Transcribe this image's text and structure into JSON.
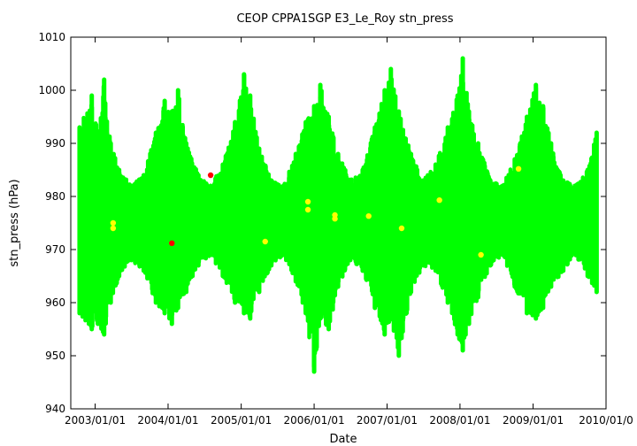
{
  "chart_data": {
    "type": "scatter",
    "title": "CEOP CPPA1SGP E3_Le_Roy  stn_press",
    "xlabel": "Date",
    "ylabel": "stn_press (hPa)",
    "ylim": [
      940,
      1010
    ],
    "xlim": [
      "2002-09-01",
      "2010-01-01"
    ],
    "y_ticks": [
      "940",
      "950",
      "960",
      "970",
      "980",
      "990",
      "1000",
      "1010"
    ],
    "x_ticks": [
      {
        "date": "2003-01-01",
        "label": "2003/01/01"
      },
      {
        "date": "2004-01-01",
        "label": "2004/01/01"
      },
      {
        "date": "2005-01-01",
        "label": "2005/01/01"
      },
      {
        "date": "2006-01-01",
        "label": "2006/01/01"
      },
      {
        "date": "2007-01-01",
        "label": "2007/01/01"
      },
      {
        "date": "2008-01-01",
        "label": "2008/01/01"
      },
      {
        "date": "2009-01-01",
        "label": "2009/01/01"
      },
      {
        "date": "2010-01-01",
        "label": "2010/01/0"
      }
    ],
    "grid": false,
    "series": [
      {
        "color": "#00ff00",
        "x": [
          "2002-10-15",
          "2002-12-15",
          "2003-01-15",
          "2003-02-15",
          "2003-03-20",
          "2003-05-01",
          "2003-07-01",
          "2003-09-01",
          "2003-11-01",
          "2003-12-15",
          "2004-01-20",
          "2004-02-20",
          "2004-04-01",
          "2004-06-01",
          "2004-08-01",
          "2004-10-01",
          "2004-12-01",
          "2005-01-15",
          "2005-02-15",
          "2005-04-01",
          "2005-06-01",
          "2005-08-01",
          "2005-10-01",
          "2005-11-20",
          "2006-01-01",
          "2006-02-01",
          "2006-03-15",
          "2006-05-01",
          "2006-07-01",
          "2006-09-01",
          "2006-11-01",
          "2006-12-20",
          "2007-01-20",
          "2007-03-01",
          "2007-05-01",
          "2007-07-01",
          "2007-09-01",
          "2007-11-01",
          "2007-12-20",
          "2008-01-15",
          "2008-02-15",
          "2008-04-01",
          "2008-06-01",
          "2008-08-01",
          "2008-10-01",
          "2008-12-01",
          "2009-01-15",
          "2009-02-20",
          "2009-04-01",
          "2009-06-01",
          "2009-08-01",
          "2009-10-01",
          "2009-11-15"
        ],
        "y_min": [
          958,
          955,
          956,
          954,
          960,
          965,
          968,
          966,
          960,
          958,
          956,
          959,
          962,
          967,
          969,
          965,
          960,
          958,
          957,
          962,
          967,
          969,
          964,
          958,
          947,
          957,
          955,
          963,
          968,
          966,
          959,
          954,
          957,
          950,
          962,
          967,
          966,
          960,
          954,
          951,
          956,
          961,
          967,
          969,
          963,
          958,
          957,
          959,
          963,
          966,
          969,
          965,
          962
        ],
        "y_max": [
          993,
          999,
          992,
          1002,
          990,
          985,
          982,
          984,
          992,
          998,
          996,
          1000,
          990,
          984,
          982,
          986,
          994,
          1003,
          999,
          989,
          983,
          982,
          988,
          994,
          997,
          1001,
          995,
          988,
          983,
          985,
          993,
          1000,
          1004,
          996,
          988,
          983,
          986,
          993,
          999,
          1006,
          996,
          990,
          983,
          982,
          987,
          995,
          1001,
          997,
          990,
          983,
          982,
          985,
          992
        ]
      },
      {
        "color": "#ffff00",
        "x": [
          "2003-04-01",
          "2003-04-01",
          "2005-05-01",
          "2005-12-01",
          "2005-12-01",
          "2006-04-15",
          "2006-04-15",
          "2006-10-01",
          "2007-03-15",
          "2007-09-20",
          "2008-04-15",
          "2008-10-20"
        ],
        "y": [
          975,
          974,
          971.5,
          979,
          977.5,
          976.5,
          975.8,
          976.3,
          974,
          979.3,
          969,
          985.2
        ]
      },
      {
        "color": "#ff0000",
        "x": [
          "2004-01-20",
          "2004-08-01"
        ],
        "y": [
          971.2,
          984
        ]
      }
    ]
  }
}
